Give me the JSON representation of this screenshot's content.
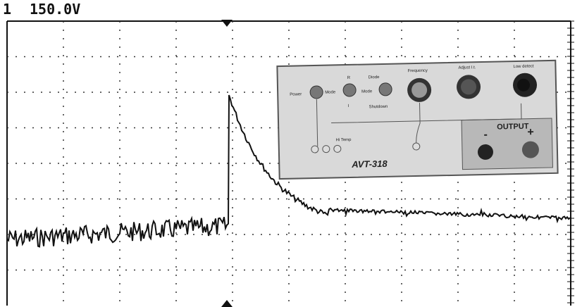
{
  "header": {
    "channel": "1",
    "scale": "150.0V"
  },
  "panel": {
    "labels": [
      "Power",
      "Mode",
      "R",
      "I",
      "Diode",
      "Mode",
      "Shutdown",
      "Frequency",
      "Adjust I.t.",
      "Low detect",
      "Hi Temp"
    ],
    "output": "OUTPUT",
    "minus": "-",
    "plus": "+",
    "model": "AVT-318"
  }
}
